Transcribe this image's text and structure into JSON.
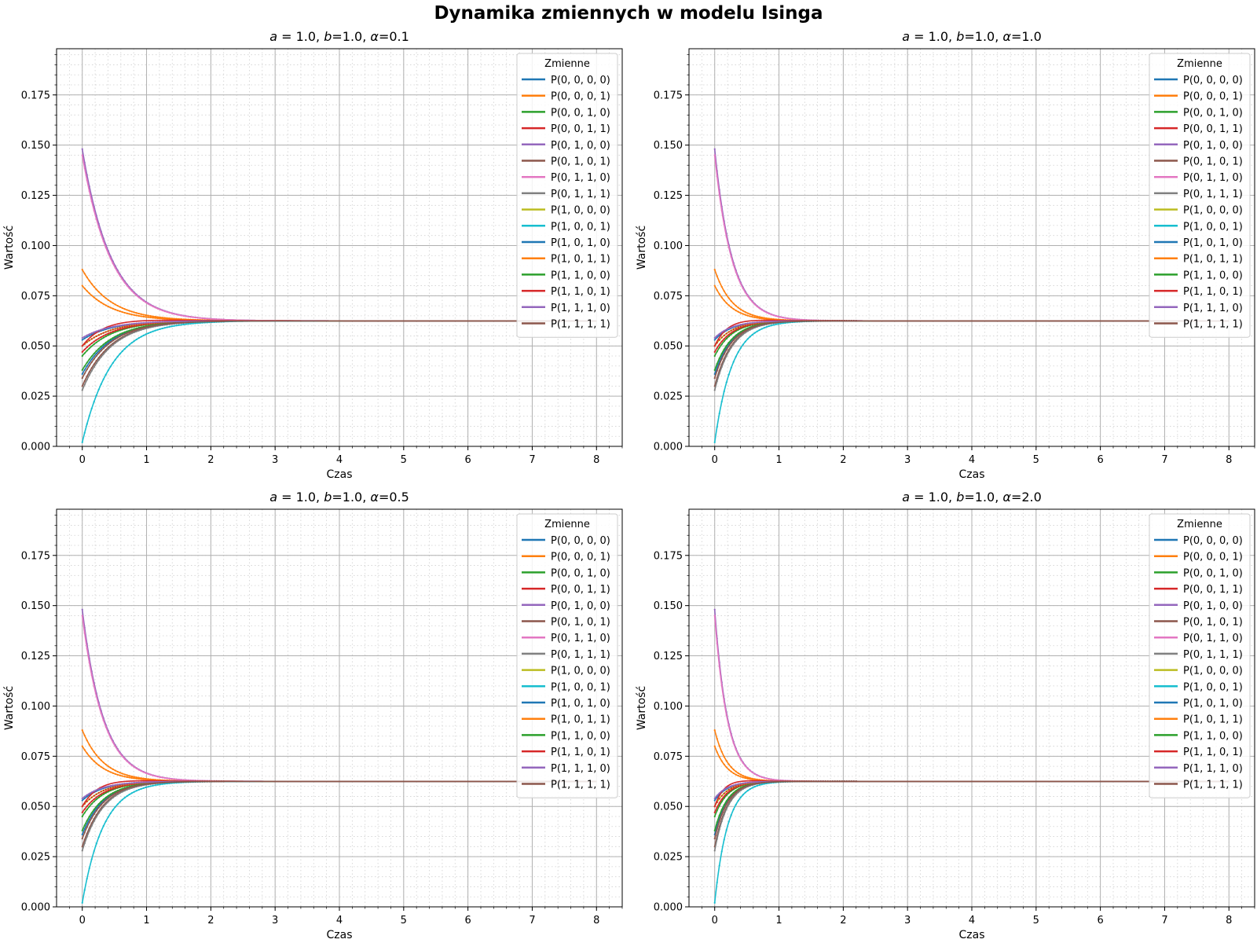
{
  "figure": {
    "title": "Dynamika zmiennych w modelu Isinga"
  },
  "legend_title": "Zmienne",
  "series_colors": [
    "#1f77b4",
    "#ff7f0e",
    "#2ca02c",
    "#d62728",
    "#9467bd",
    "#8c564b",
    "#e377c2",
    "#7f7f7f",
    "#bcbd22",
    "#17becf",
    "#1f77b4",
    "#ff7f0e",
    "#2ca02c",
    "#d62728",
    "#9467bd",
    "#8c564b"
  ],
  "chart_data": [
    {
      "type": "line",
      "title": "a = 1.0, b=1.0, α=0.1",
      "title_parts": {
        "a": "a",
        "a_val": " = 1.0, ",
        "b": "b",
        "b_val": "=1.0, ",
        "alpha": "α",
        "alpha_val": "=0.1"
      },
      "xlabel": "Czas",
      "ylabel": "Wartość",
      "xlim": [
        -0.4,
        8.4
      ],
      "ylim": [
        0,
        0.198
      ],
      "xticks": [
        0,
        1,
        2,
        3,
        4,
        5,
        6,
        7,
        8
      ],
      "yticks": [
        0.0,
        0.025,
        0.05,
        0.075,
        0.1,
        0.125,
        0.15,
        0.175
      ],
      "grid": true,
      "legend_position": "top-right",
      "x_range": [
        0,
        8
      ],
      "equilibrium": 0.0625,
      "tau": 0.45,
      "series": [
        {
          "name": "P(0, 0, 0, 0)",
          "initial": 0.053
        },
        {
          "name": "P(0, 0, 0, 1)",
          "initial": 0.088
        },
        {
          "name": "P(0, 0, 1, 0)",
          "initial": 0.045
        },
        {
          "name": "P(0, 0, 1, 1)",
          "initial": 0.047
        },
        {
          "name": "P(0, 1, 0, 0)",
          "initial": 0.148
        },
        {
          "name": "P(0, 1, 0, 1)",
          "initial": 0.03
        },
        {
          "name": "P(0, 1, 1, 0)",
          "initial": 0.145
        },
        {
          "name": "P(0, 1, 1, 1)",
          "initial": 0.028
        },
        {
          "name": "P(1, 0, 0, 0)",
          "initial": 0.05
        },
        {
          "name": "P(1, 0, 0, 1)",
          "initial": 0.002
        },
        {
          "name": "P(1, 0, 1, 0)",
          "initial": 0.036
        },
        {
          "name": "P(1, 0, 1, 1)",
          "initial": 0.08
        },
        {
          "name": "P(1, 1, 0, 0)",
          "initial": 0.038
        },
        {
          "name": "P(1, 1, 0, 1)",
          "initial": 0.05
        },
        {
          "name": "P(1, 1, 1, 0)",
          "initial": 0.054
        },
        {
          "name": "P(1, 1, 1, 1)",
          "initial": 0.034
        }
      ]
    },
    {
      "type": "line",
      "title": "a = 1.0, b=1.0, α=1.0",
      "title_parts": {
        "a": "a",
        "a_val": " = 1.0, ",
        "b": "b",
        "b_val": "=1.0, ",
        "alpha": "α",
        "alpha_val": "=1.0"
      },
      "xlabel": "Czas",
      "ylabel": "Wartość",
      "xlim": [
        -0.4,
        8.4
      ],
      "ylim": [
        0,
        0.198
      ],
      "xticks": [
        0,
        1,
        2,
        3,
        4,
        5,
        6,
        7,
        8
      ],
      "yticks": [
        0.0,
        0.025,
        0.05,
        0.075,
        0.1,
        0.125,
        0.15,
        0.175
      ],
      "grid": true,
      "legend_position": "top-right",
      "x_range": [
        0,
        8
      ],
      "equilibrium": 0.0625,
      "tau": 0.27,
      "series": [
        {
          "name": "P(0, 0, 0, 0)",
          "initial": 0.053
        },
        {
          "name": "P(0, 0, 0, 1)",
          "initial": 0.088
        },
        {
          "name": "P(0, 0, 1, 0)",
          "initial": 0.045
        },
        {
          "name": "P(0, 0, 1, 1)",
          "initial": 0.047
        },
        {
          "name": "P(0, 1, 0, 0)",
          "initial": 0.148
        },
        {
          "name": "P(0, 1, 0, 1)",
          "initial": 0.03
        },
        {
          "name": "P(0, 1, 1, 0)",
          "initial": 0.145
        },
        {
          "name": "P(0, 1, 1, 1)",
          "initial": 0.028
        },
        {
          "name": "P(1, 0, 0, 0)",
          "initial": 0.05
        },
        {
          "name": "P(1, 0, 0, 1)",
          "initial": 0.002
        },
        {
          "name": "P(1, 0, 1, 0)",
          "initial": 0.036
        },
        {
          "name": "P(1, 0, 1, 1)",
          "initial": 0.08
        },
        {
          "name": "P(1, 1, 0, 0)",
          "initial": 0.038
        },
        {
          "name": "P(1, 1, 0, 1)",
          "initial": 0.05
        },
        {
          "name": "P(1, 1, 1, 0)",
          "initial": 0.054
        },
        {
          "name": "P(1, 1, 1, 1)",
          "initial": 0.034
        }
      ]
    },
    {
      "type": "line",
      "title": "a = 1.0, b=1.0, α=0.5",
      "title_parts": {
        "a": "a",
        "a_val": " = 1.0, ",
        "b": "b",
        "b_val": "=1.0, ",
        "alpha": "α",
        "alpha_val": "=0.5"
      },
      "xlabel": "Czas",
      "ylabel": "Wartość",
      "xlim": [
        -0.4,
        8.4
      ],
      "ylim": [
        0,
        0.198
      ],
      "xticks": [
        0,
        1,
        2,
        3,
        4,
        5,
        6,
        7,
        8
      ],
      "yticks": [
        0.0,
        0.025,
        0.05,
        0.075,
        0.1,
        0.125,
        0.15,
        0.175
      ],
      "grid": true,
      "legend_position": "top-right",
      "x_range": [
        0,
        8
      ],
      "equilibrium": 0.0625,
      "tau": 0.33,
      "series": [
        {
          "name": "P(0, 0, 0, 0)",
          "initial": 0.053
        },
        {
          "name": "P(0, 0, 0, 1)",
          "initial": 0.088
        },
        {
          "name": "P(0, 0, 1, 0)",
          "initial": 0.045
        },
        {
          "name": "P(0, 0, 1, 1)",
          "initial": 0.047
        },
        {
          "name": "P(0, 1, 0, 0)",
          "initial": 0.148
        },
        {
          "name": "P(0, 1, 0, 1)",
          "initial": 0.03
        },
        {
          "name": "P(0, 1, 1, 0)",
          "initial": 0.145
        },
        {
          "name": "P(0, 1, 1, 1)",
          "initial": 0.028
        },
        {
          "name": "P(1, 0, 0, 0)",
          "initial": 0.05
        },
        {
          "name": "P(1, 0, 0, 1)",
          "initial": 0.002
        },
        {
          "name": "P(1, 0, 1, 0)",
          "initial": 0.036
        },
        {
          "name": "P(1, 0, 1, 1)",
          "initial": 0.08
        },
        {
          "name": "P(1, 1, 0, 0)",
          "initial": 0.038
        },
        {
          "name": "P(1, 1, 0, 1)",
          "initial": 0.05
        },
        {
          "name": "P(1, 1, 1, 0)",
          "initial": 0.054
        },
        {
          "name": "P(1, 1, 1, 1)",
          "initial": 0.034
        }
      ]
    },
    {
      "type": "line",
      "title": "a = 1.0, b=1.0, α=2.0",
      "title_parts": {
        "a": "a",
        "a_val": " = 1.0, ",
        "b": "b",
        "b_val": "=1.0, ",
        "alpha": "α",
        "alpha_val": "=2.0"
      },
      "xlabel": "Czas",
      "ylabel": "Wartość",
      "xlim": [
        -0.4,
        8.4
      ],
      "ylim": [
        0,
        0.198
      ],
      "xticks": [
        0,
        1,
        2,
        3,
        4,
        5,
        6,
        7,
        8
      ],
      "yticks": [
        0.0,
        0.025,
        0.05,
        0.075,
        0.1,
        0.125,
        0.15,
        0.175
      ],
      "grid": true,
      "legend_position": "top-right",
      "x_range": [
        0,
        8
      ],
      "equilibrium": 0.0625,
      "tau": 0.2,
      "series": [
        {
          "name": "P(0, 0, 0, 0)",
          "initial": 0.053
        },
        {
          "name": "P(0, 0, 0, 1)",
          "initial": 0.088
        },
        {
          "name": "P(0, 0, 1, 0)",
          "initial": 0.045
        },
        {
          "name": "P(0, 0, 1, 1)",
          "initial": 0.047
        },
        {
          "name": "P(0, 1, 0, 0)",
          "initial": 0.148
        },
        {
          "name": "P(0, 1, 0, 1)",
          "initial": 0.03
        },
        {
          "name": "P(0, 1, 1, 0)",
          "initial": 0.145
        },
        {
          "name": "P(0, 1, 1, 1)",
          "initial": 0.028
        },
        {
          "name": "P(1, 0, 0, 0)",
          "initial": 0.05
        },
        {
          "name": "P(1, 0, 0, 1)",
          "initial": 0.002
        },
        {
          "name": "P(1, 0, 1, 0)",
          "initial": 0.036
        },
        {
          "name": "P(1, 0, 1, 1)",
          "initial": 0.08
        },
        {
          "name": "P(1, 1, 0, 0)",
          "initial": 0.038
        },
        {
          "name": "P(1, 1, 0, 1)",
          "initial": 0.05
        },
        {
          "name": "P(1, 1, 1, 0)",
          "initial": 0.054
        },
        {
          "name": "P(1, 1, 1, 1)",
          "initial": 0.034
        }
      ]
    }
  ]
}
